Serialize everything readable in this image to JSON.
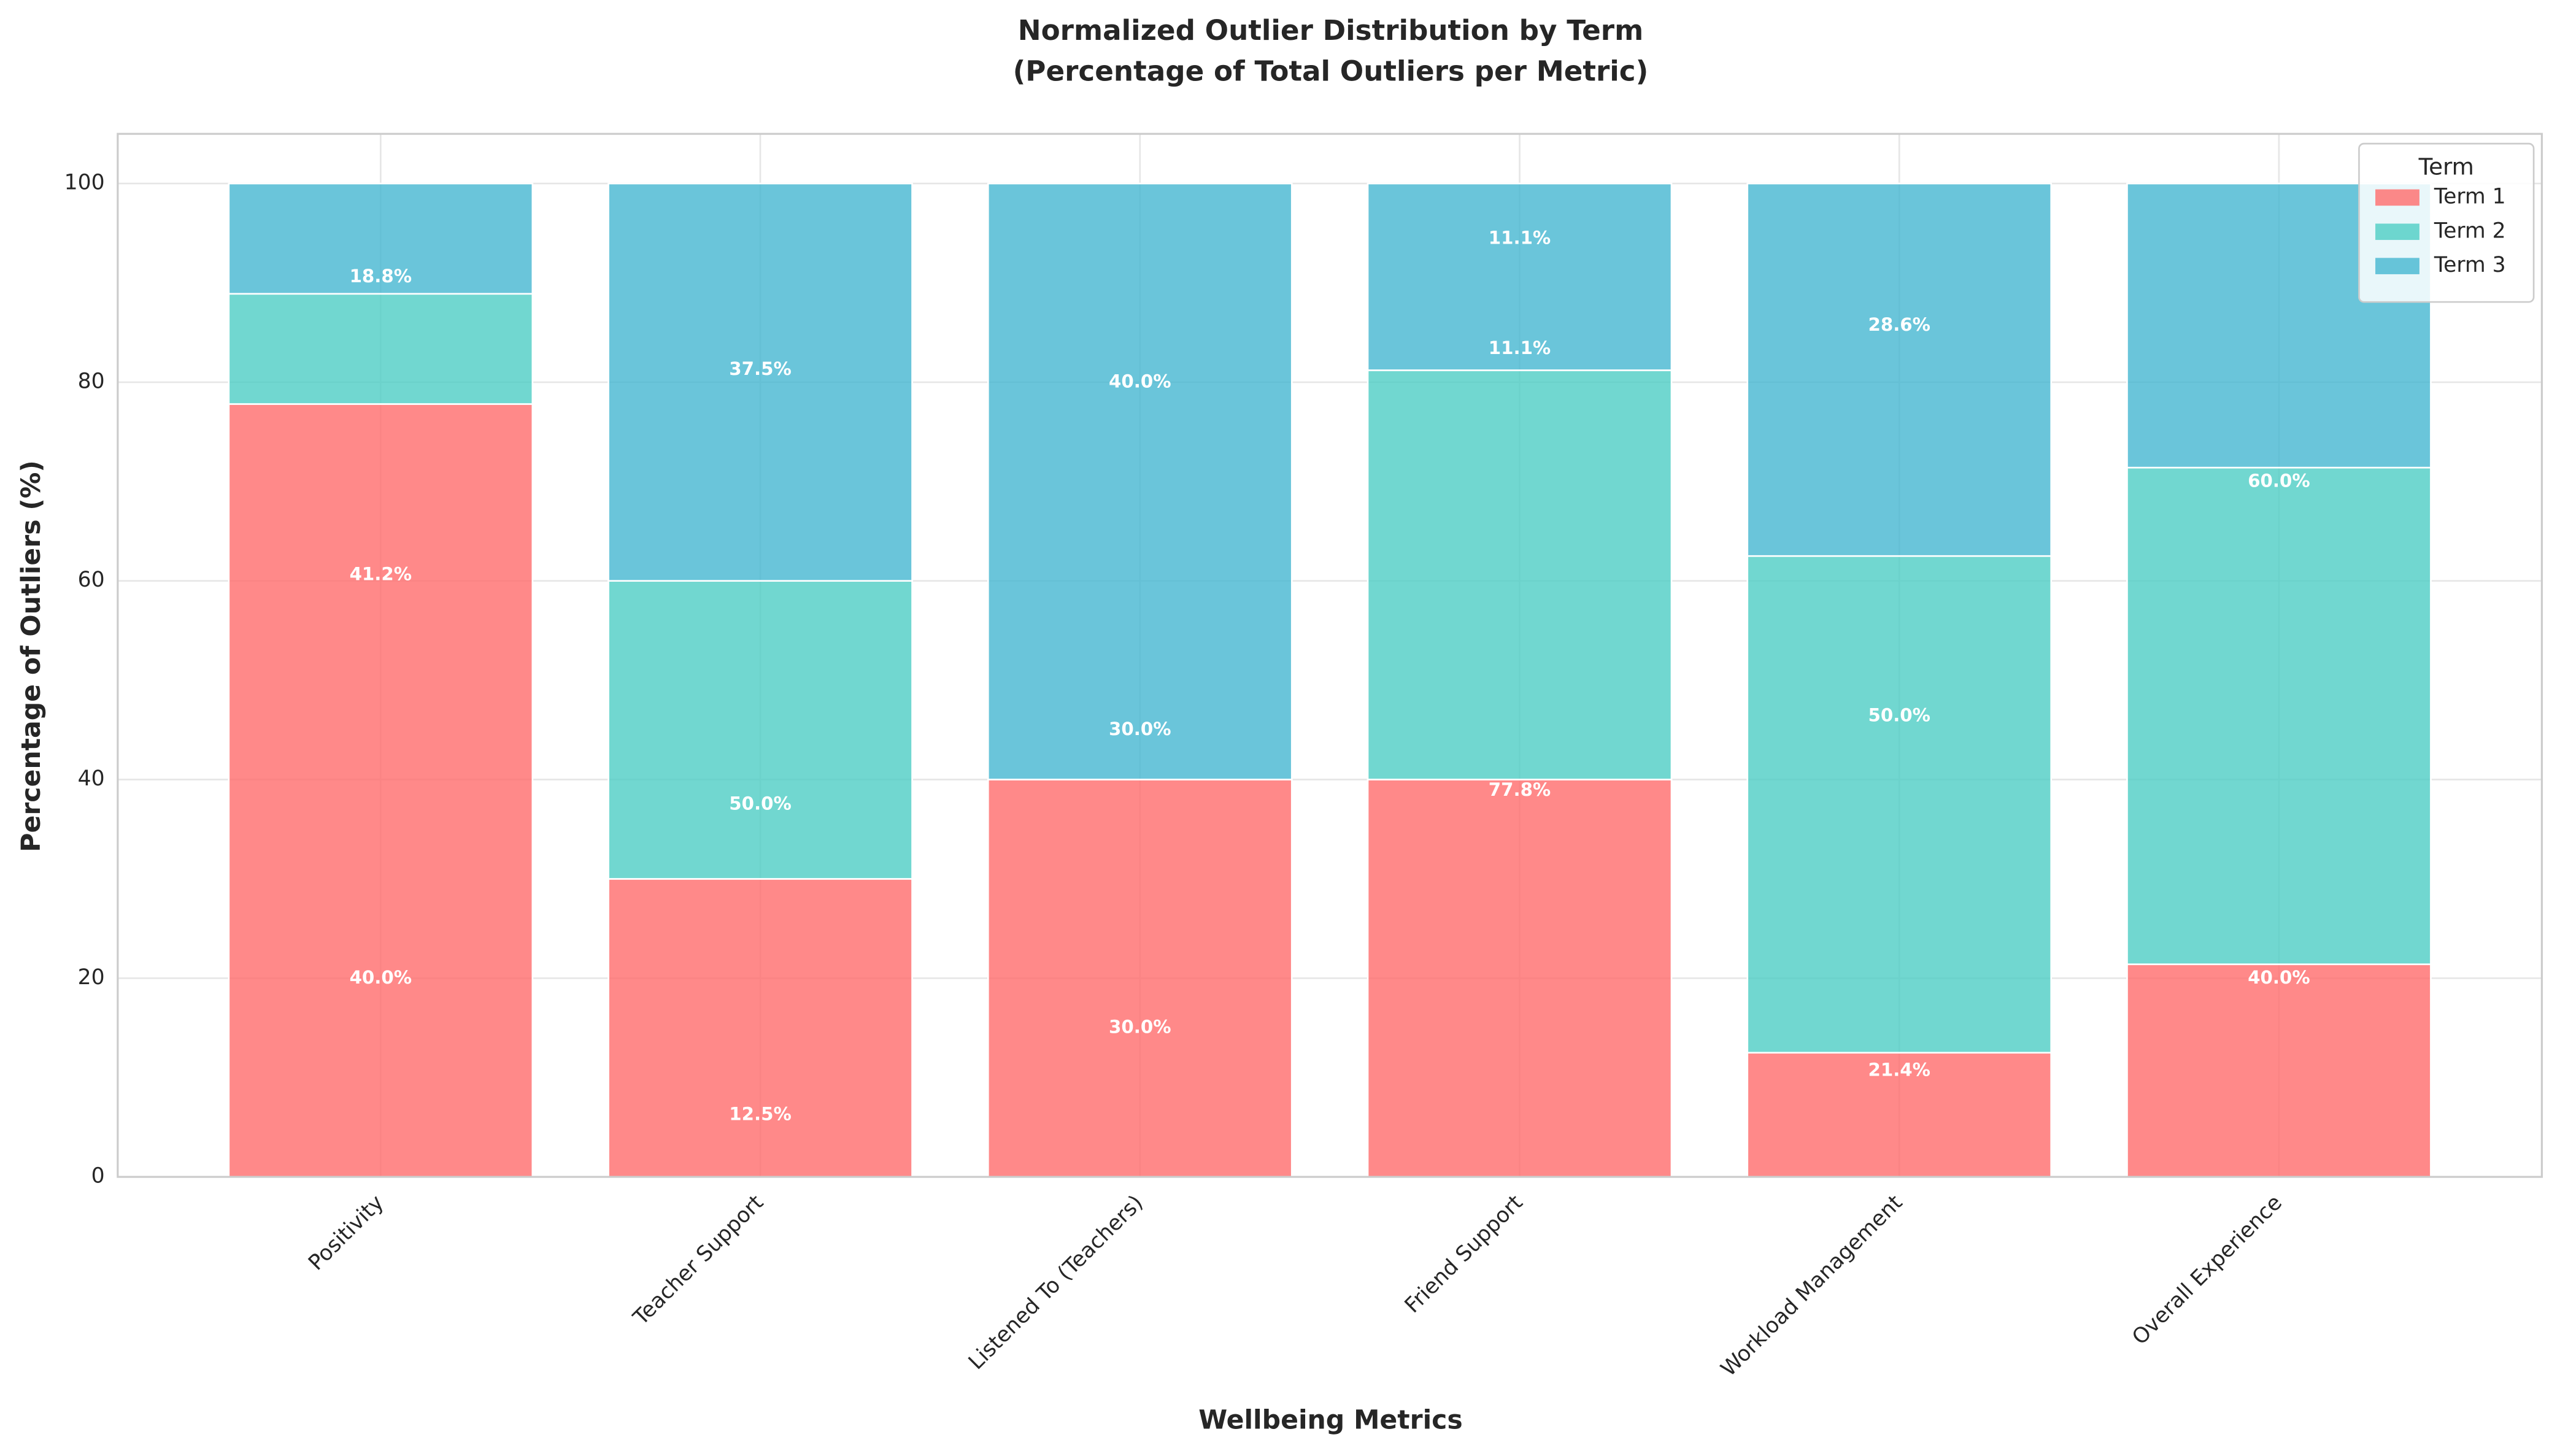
{
  "chart_data": {
    "type": "stacked_bar",
    "title": "Normalized Outlier Distribution by Term",
    "subtitle": "(Percentage of Total Outliers per Metric)",
    "x_label": "Wellbeing Metrics",
    "y_label": "Percentage of Outliers (%)",
    "categories": [
      "Positivity",
      "Teacher Support",
      "Listened To (Teachers)",
      "Friend Support",
      "Workload Management",
      "Overall Experience"
    ],
    "series": [
      {
        "name": "Term 1",
        "color": "#FF6B6B",
        "values": [
          77.8,
          30.0,
          40.0,
          40.0,
          12.5,
          21.4
        ]
      },
      {
        "name": "Term 2",
        "color": "#4ECDC4",
        "values": [
          11.1,
          30.0,
          0.0,
          41.2,
          50.0,
          50.0
        ]
      },
      {
        "name": "Term 3",
        "color": "#45B7D1",
        "values": [
          11.1,
          40.0,
          60.0,
          18.8,
          37.5,
          28.6
        ]
      }
    ],
    "bar_labels": [
      [
        {
          "value": 40.0,
          "label": "40.0%"
        },
        {
          "value": 41.2,
          "label": "41.2%"
        },
        {
          "value": 18.8,
          "label": "18.8%"
        }
      ],
      [
        {
          "value": 12.5,
          "label": "12.5%"
        },
        {
          "value": 50.0,
          "label": "50.0%"
        },
        {
          "value": 37.5,
          "label": "37.5%"
        }
      ],
      [
        {
          "value": 30.0,
          "label": "30.0%"
        },
        {
          "value": 30.0,
          "label": "30.0%"
        },
        {
          "value": 40.0,
          "label": "40.0%"
        }
      ],
      [
        {
          "value": 77.8,
          "label": "77.8%"
        },
        {
          "value": 11.1,
          "label": "11.1%"
        },
        {
          "value": 11.1,
          "label": "11.1%"
        }
      ],
      [
        {
          "value": 21.4,
          "label": "21.4%"
        },
        {
          "value": 50.0,
          "label": "50.0%"
        },
        {
          "value": 28.6,
          "label": "28.6%"
        }
      ],
      [
        {
          "value": 40.0,
          "label": "40.0%"
        },
        {
          "value": 60.0,
          "label": "60.0%"
        }
      ]
    ],
    "ylim": [
      0,
      105
    ],
    "yticks": [
      0,
      20,
      40,
      60,
      80,
      100
    ],
    "grid": true,
    "legend_title": "Term",
    "legend_position": "upper right"
  }
}
